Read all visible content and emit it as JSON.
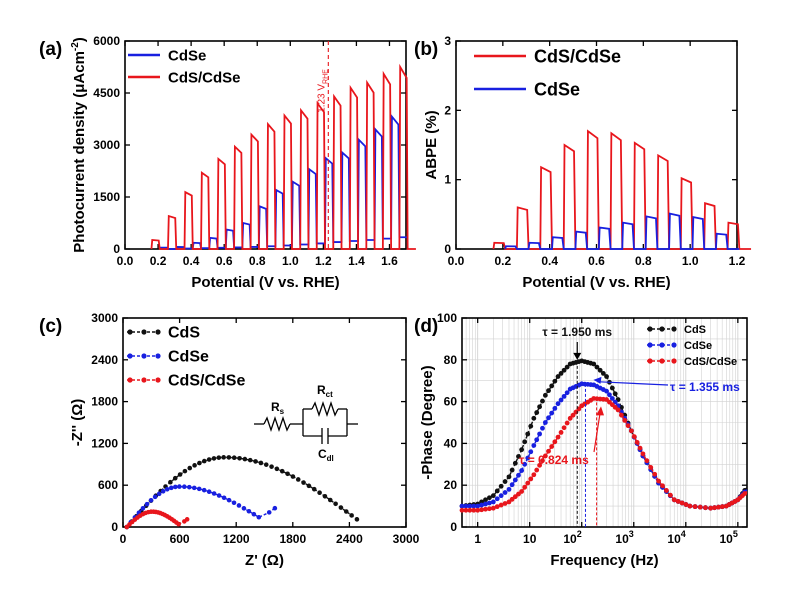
{
  "colors": {
    "red": "#e8161c",
    "blue": "#1820e0",
    "black": "#111111",
    "grid": "#d2d2d2"
  },
  "chart_data": [
    {
      "id": "a",
      "type": "line",
      "panel_label": "(a)",
      "title": "",
      "xlabel": "Potential (V vs. RHE)",
      "ylabel": "Photocurrent density (μAcm",
      "ylabel_sup": "-2",
      "ylabel_close": ")",
      "xlim": [
        0.0,
        1.7
      ],
      "ylim": [
        0,
        6000
      ],
      "xticks": [
        0.0,
        0.2,
        0.4,
        0.6,
        0.8,
        1.0,
        1.2,
        1.4,
        1.6
      ],
      "xticklabels": [
        "0.0",
        "0.2",
        "0.4",
        "0.6",
        "0.8",
        "1.0",
        "1.2",
        "1.4",
        "1.6"
      ],
      "yticks": [
        0,
        1500,
        3000,
        4500,
        6000
      ],
      "yticklabels": [
        "0",
        "1500",
        "3000",
        "4500",
        "6000"
      ],
      "legend": [
        "CdSe",
        "CdS/CdSe"
      ],
      "legend_position": "top-left",
      "annotation": {
        "x": 1.23,
        "text": "1.23 V",
        "sub": "RHE"
      },
      "series": [
        {
          "name": "CdSe",
          "color_key": "blue",
          "style": "chopped",
          "on_x": [
            0.21,
            0.31,
            0.41,
            0.51,
            0.61,
            0.71,
            0.81,
            0.91,
            1.01,
            1.11,
            1.21,
            1.31,
            1.41,
            1.51,
            1.61
          ],
          "on_y": [
            40,
            60,
            180,
            320,
            560,
            750,
            1230,
            1700,
            1940,
            2300,
            2620,
            2780,
            3150,
            3450,
            3820
          ],
          "off_y": [
            0,
            15,
            25,
            35,
            45,
            60,
            80,
            100,
            130,
            160,
            200,
            230,
            260,
            300,
            340
          ]
        },
        {
          "name": "CdS/CdSe",
          "color_key": "red",
          "style": "chopped",
          "on_x": [
            0.16,
            0.26,
            0.36,
            0.46,
            0.56,
            0.66,
            0.76,
            0.86,
            0.96,
            1.06,
            1.16,
            1.26,
            1.36,
            1.46,
            1.56,
            1.66
          ],
          "on_y": [
            260,
            950,
            1640,
            2200,
            2600,
            2950,
            3300,
            3600,
            3850,
            4000,
            4200,
            4400,
            4650,
            4800,
            5050,
            5250
          ],
          "off_y": [
            0,
            0,
            0,
            0,
            0,
            0,
            0,
            0,
            0,
            0,
            0,
            0,
            0,
            0,
            0,
            0
          ]
        }
      ]
    },
    {
      "id": "b",
      "type": "line",
      "panel_label": "(b)",
      "title": "",
      "xlabel": "Potential (V vs. RHE)",
      "ylabel": "ABPE (%)",
      "xlim": [
        0.0,
        1.2
      ],
      "ylim": [
        0,
        3
      ],
      "xticks": [
        0.0,
        0.2,
        0.4,
        0.6,
        0.8,
        1.0,
        1.2
      ],
      "xticklabels": [
        "0.0",
        "0.2",
        "0.4",
        "0.6",
        "0.8",
        "1.0",
        "1.2"
      ],
      "yticks": [
        0,
        1,
        2,
        3
      ],
      "yticklabels": [
        "0",
        "1",
        "2",
        "3"
      ],
      "legend": [
        "CdS/CdSe",
        "CdSe"
      ],
      "legend_position": "top-left",
      "series": [
        {
          "name": "CdS/CdSe",
          "color_key": "red",
          "style": "chopped",
          "on_x": [
            0.16,
            0.26,
            0.36,
            0.46,
            0.56,
            0.66,
            0.76,
            0.86,
            0.96,
            1.06,
            1.16
          ],
          "on_y": [
            0.09,
            0.6,
            1.18,
            1.5,
            1.7,
            1.67,
            1.53,
            1.35,
            1.02,
            0.66,
            0.38
          ],
          "off_y": [
            0,
            0,
            0,
            0,
            0,
            0,
            0,
            0,
            0,
            0,
            0
          ]
        },
        {
          "name": "CdSe",
          "color_key": "blue",
          "style": "chopped",
          "on_x": [
            0.21,
            0.31,
            0.41,
            0.51,
            0.61,
            0.71,
            0.81,
            0.91,
            1.01,
            1.11
          ],
          "on_y": [
            0.04,
            0.09,
            0.17,
            0.25,
            0.31,
            0.38,
            0.47,
            0.51,
            0.46,
            0.22
          ],
          "off_y": [
            0,
            0,
            0,
            0,
            0,
            0,
            0,
            0,
            0,
            0
          ]
        }
      ]
    },
    {
      "id": "c",
      "type": "scatter",
      "panel_label": "(c)",
      "title": "",
      "xlabel": "Z' (Ω)",
      "ylabel": "-Z'' (Ω)",
      "xlim": [
        0,
        3000
      ],
      "ylim": [
        0,
        3000
      ],
      "xticks": [
        0,
        600,
        1200,
        1800,
        2400,
        3000
      ],
      "xticklabels": [
        "0",
        "600",
        "1200",
        "1800",
        "2400",
        "3000"
      ],
      "yticks": [
        0,
        600,
        1200,
        1800,
        2400,
        3000
      ],
      "yticklabels": [
        "0",
        "600",
        "1200",
        "1800",
        "2400",
        "3000"
      ],
      "legend": [
        "CdS",
        "CdSe",
        "CdS/CdSe"
      ],
      "legend_position": "top-left",
      "circuit_labels": {
        "rs": "R",
        "rs_sub": "s",
        "rct": "R",
        "rct_sub": "ct",
        "cdl": "C",
        "cdl_sub": "dl"
      },
      "series": [
        {
          "name": "CdS",
          "color_key": "black",
          "style": "arc",
          "x_start": 40,
          "x_end": 2480,
          "peak_x": 1080,
          "peak_y": 1000,
          "end_y": 110,
          "n_points": 46
        },
        {
          "name": "CdSe",
          "color_key": "blue",
          "style": "arc",
          "x_start": 40,
          "x_end": 1440,
          "peak_x": 600,
          "peak_y": 580,
          "end_y": 140,
          "n_points": 30,
          "tail_x": [
            1550,
            1610
          ],
          "tail_y": [
            210,
            270
          ]
        },
        {
          "name": "CdS/CdSe",
          "color_key": "red",
          "style": "arc",
          "x_start": 40,
          "x_end": 590,
          "peak_x": 310,
          "peak_y": 220,
          "end_y": 40,
          "n_points": 22,
          "tail_x": [
            650,
            680
          ],
          "tail_y": [
            80,
            110
          ]
        }
      ]
    },
    {
      "id": "d",
      "type": "scatter",
      "panel_label": "(d)",
      "title": "",
      "xlabel": "Frequency (Hz)",
      "ylabel": "-Phase (Degree)",
      "xscale": "log",
      "xlim": [
        0.5,
        150000
      ],
      "ylim": [
        0,
        100
      ],
      "xticks": [
        1,
        10,
        100,
        1000,
        10000,
        100000
      ],
      "xticklabels": [
        "1",
        "10",
        "10",
        "10",
        "10",
        "10"
      ],
      "xtick_exponents": [
        "",
        "",
        "2",
        "3",
        "4",
        "5"
      ],
      "yticks": [
        0,
        20,
        40,
        60,
        80,
        100
      ],
      "yticklabels": [
        "0",
        "20",
        "40",
        "60",
        "80",
        "100"
      ],
      "legend": [
        "CdS",
        "CdSe",
        "CdS/CdSe"
      ],
      "legend_position": "top-right",
      "annotations": [
        {
          "series": "CdS",
          "text": "τ = 1.950 ms",
          "freq": 82,
          "peak": 79.5
        },
        {
          "series": "CdSe",
          "text": "τ = 1.355 ms",
          "freq": 118,
          "peak": 68.5
        },
        {
          "series": "CdS/CdSe",
          "text": "τ = 0.824 ms",
          "freq": 193,
          "peak": 62
        }
      ],
      "series": [
        {
          "name": "CdS",
          "color_key": "black",
          "x": [
            0.5,
            1,
            2,
            4,
            7,
            12,
            20,
            35,
            60,
            100,
            170,
            300,
            500,
            900,
            1500,
            3000,
            6000,
            12000,
            30000,
            60000,
            100000,
            150000
          ],
          "y": [
            10,
            11,
            15,
            24,
            37,
            52,
            63,
            72,
            78,
            79.5,
            78,
            72,
            61,
            46,
            34,
            21,
            13,
            10,
            9,
            10,
            13,
            19
          ]
        },
        {
          "name": "CdSe",
          "color_key": "blue",
          "x": [
            0.5,
            1,
            2,
            4,
            7,
            12,
            20,
            35,
            60,
            100,
            170,
            300,
            500,
            900,
            1500,
            3000,
            6000,
            12000,
            30000,
            60000,
            100000,
            150000
          ],
          "y": [
            10,
            10,
            12,
            18,
            27,
            39,
            50,
            59,
            66,
            68.5,
            68,
            65,
            58,
            46,
            34,
            21,
            13,
            10,
            9,
            10,
            13,
            18
          ]
        },
        {
          "name": "CdS/CdSe",
          "color_key": "red",
          "x": [
            0.5,
            1,
            2,
            4,
            7,
            12,
            20,
            35,
            60,
            100,
            170,
            300,
            500,
            900,
            1500,
            3000,
            6000,
            12000,
            30000,
            60000,
            100000,
            150000
          ],
          "y": [
            8,
            8,
            9,
            12,
            17,
            25,
            34,
            43,
            52,
            58,
            61.5,
            61,
            56,
            46,
            35,
            22,
            13,
            10,
            9,
            10,
            13,
            17
          ]
        }
      ]
    }
  ]
}
